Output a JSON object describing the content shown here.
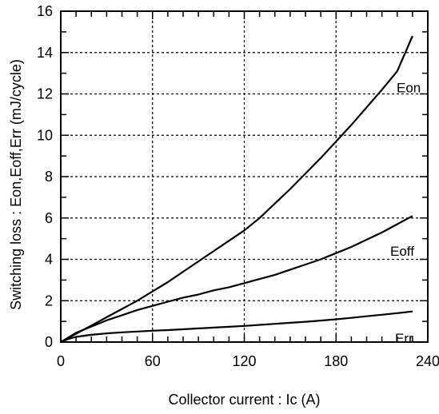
{
  "chart_data": {
    "type": "line",
    "title": "",
    "xlabel": "Collector current : Ic  (A)",
    "ylabel": "Switching loss : Eon,Eoff,Err  (mJ/cycle)",
    "xlim": [
      0,
      240
    ],
    "ylim": [
      0,
      16
    ],
    "xticks": [
      0,
      60,
      120,
      180,
      240
    ],
    "yticks": [
      0,
      2,
      4,
      6,
      8,
      10,
      12,
      14,
      16
    ],
    "grid": true,
    "legend": "inline labels at line ends",
    "series": [
      {
        "name": "Eon",
        "x": [
          0,
          10,
          20,
          30,
          40,
          50,
          60,
          70,
          80,
          90,
          100,
          110,
          120,
          130,
          140,
          150,
          160,
          170,
          180,
          190,
          200,
          210,
          220,
          230
        ],
        "y": [
          0,
          0.4,
          0.8,
          1.2,
          1.6,
          2.0,
          2.45,
          2.9,
          3.4,
          3.9,
          4.4,
          4.9,
          5.4,
          6.0,
          6.7,
          7.4,
          8.15,
          8.9,
          9.7,
          10.5,
          11.35,
          12.2,
          13.1,
          14.8
        ]
      },
      {
        "name": "Eoff",
        "x": [
          0,
          10,
          20,
          30,
          40,
          50,
          60,
          70,
          80,
          90,
          100,
          110,
          120,
          130,
          140,
          150,
          160,
          170,
          180,
          190,
          200,
          210,
          220,
          230
        ],
        "y": [
          0,
          0.45,
          0.75,
          1.05,
          1.3,
          1.55,
          1.75,
          1.95,
          2.15,
          2.3,
          2.5,
          2.65,
          2.85,
          3.05,
          3.25,
          3.5,
          3.75,
          4.0,
          4.3,
          4.6,
          4.95,
          5.3,
          5.7,
          6.1
        ]
      },
      {
        "name": "Err",
        "x": [
          0,
          5,
          10,
          20,
          30,
          40,
          50,
          60,
          70,
          80,
          90,
          100,
          110,
          120,
          130,
          140,
          150,
          160,
          170,
          180,
          190,
          200,
          210,
          220,
          230
        ],
        "y": [
          0,
          0.15,
          0.25,
          0.35,
          0.42,
          0.47,
          0.51,
          0.55,
          0.58,
          0.62,
          0.66,
          0.7,
          0.74,
          0.78,
          0.83,
          0.88,
          0.93,
          0.98,
          1.04,
          1.1,
          1.17,
          1.25,
          1.32,
          1.4,
          1.48
        ]
      }
    ],
    "tick_labels_x": [
      "0",
      "60",
      "120",
      "180",
      "240"
    ],
    "tick_labels_y": [
      "0",
      "2",
      "4",
      "6",
      "8",
      "10",
      "12",
      "14",
      "16"
    ],
    "series_labels": {
      "Eon": "Eon",
      "Eoff": "Eoff",
      "Err": "Err"
    },
    "colors": {
      "line": "#000000",
      "grid": "#000000",
      "background": "#ffffff"
    }
  }
}
